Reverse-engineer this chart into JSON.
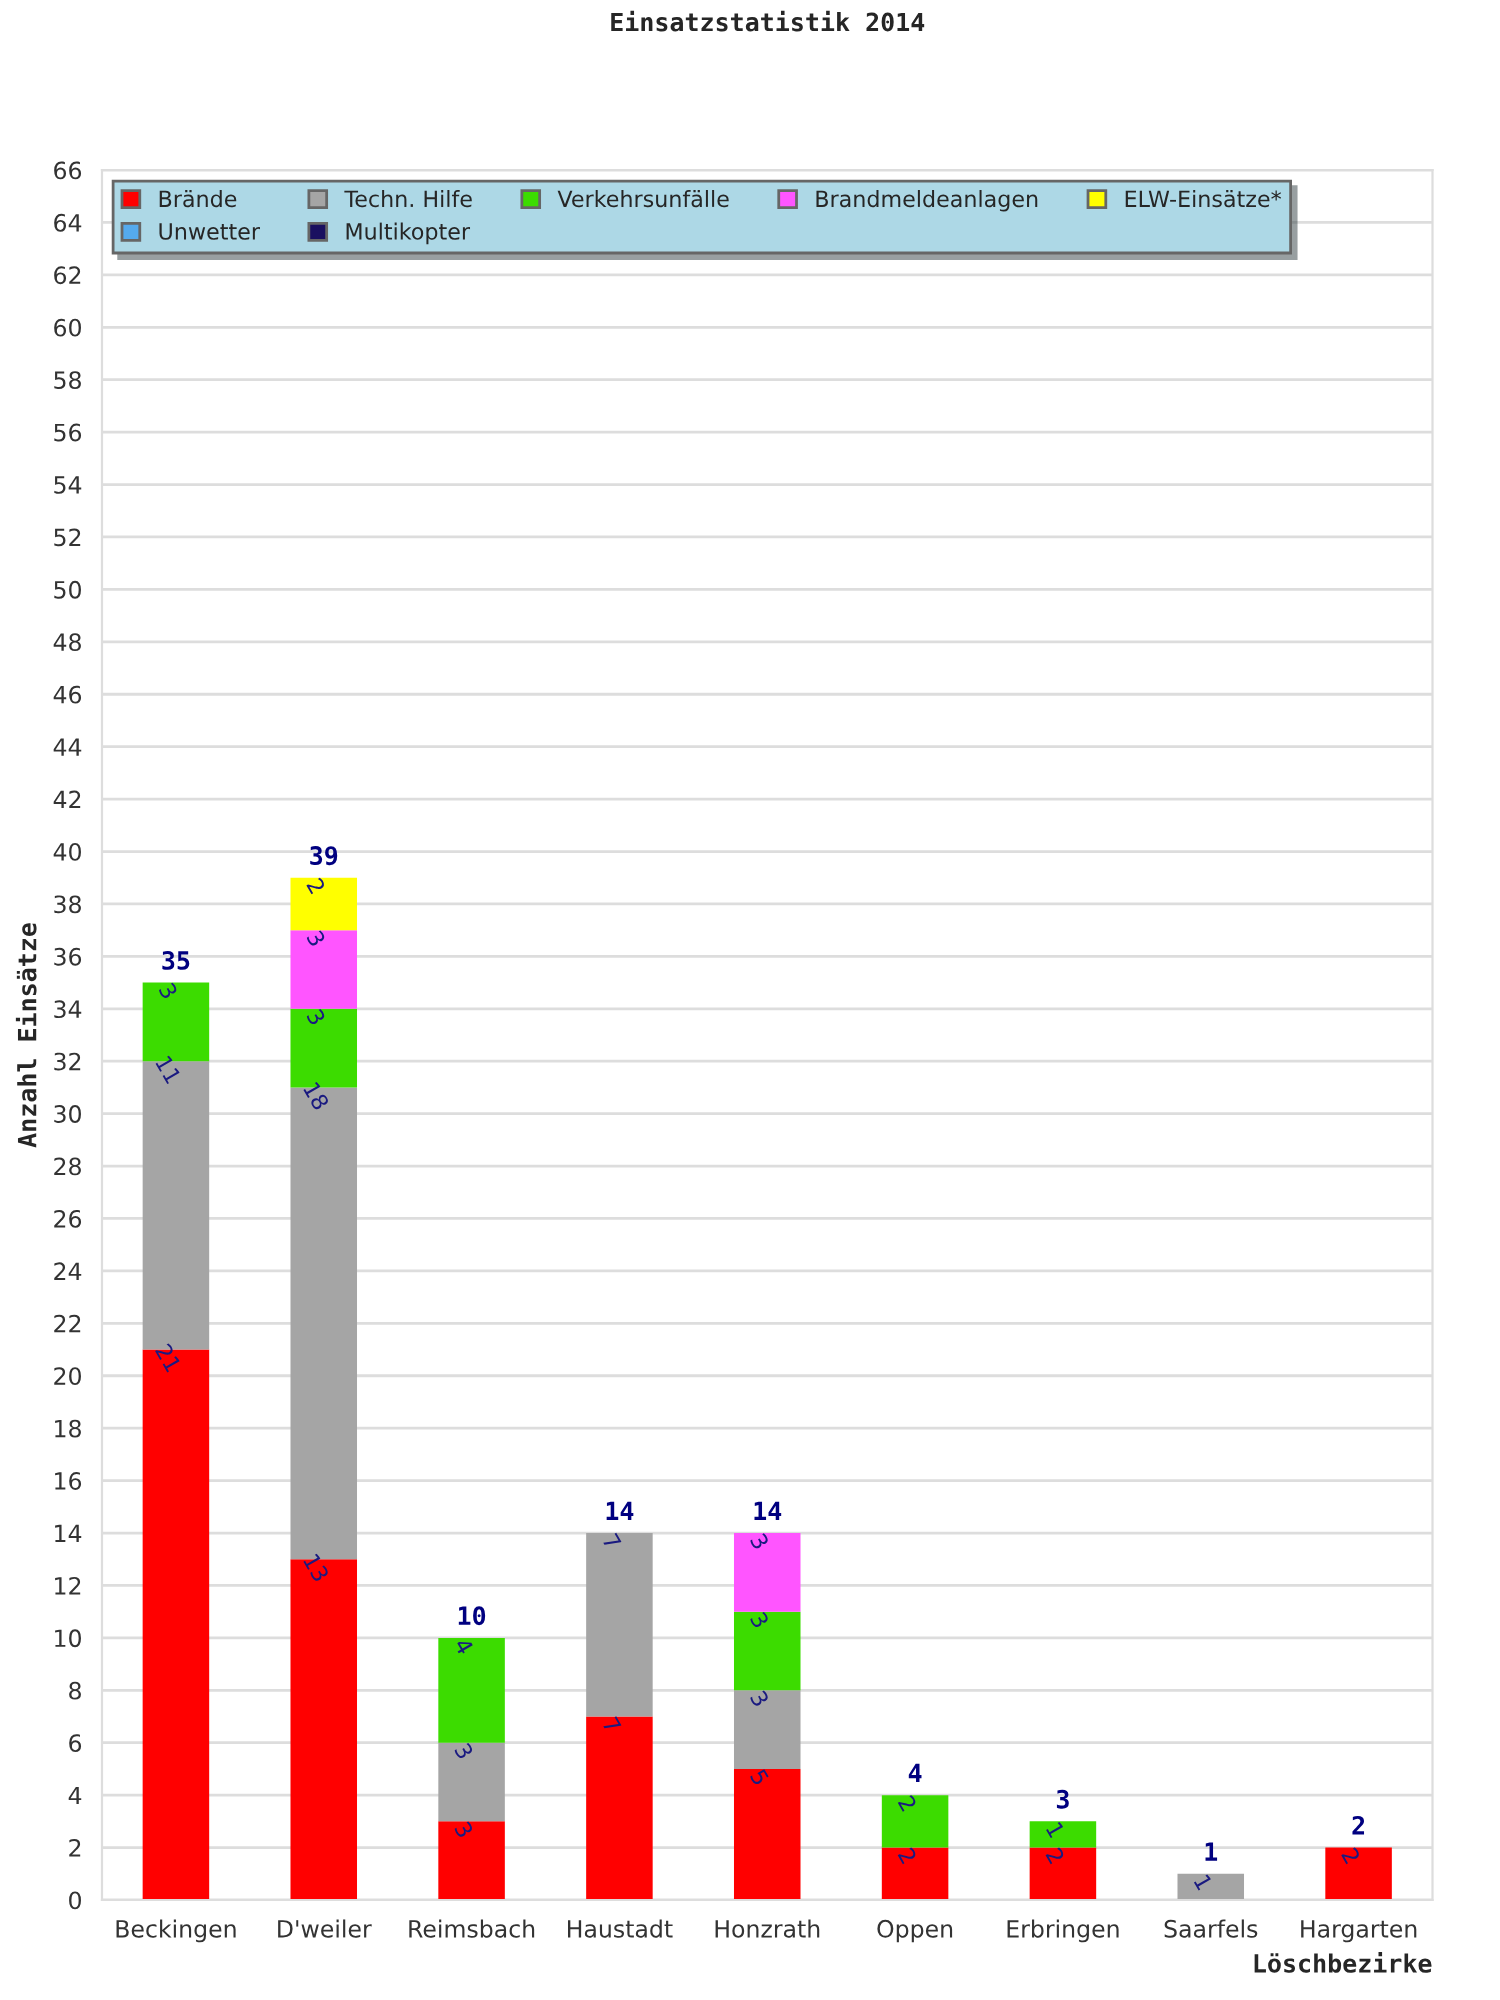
{
  "chart_data": {
    "type": "bar",
    "title": "Einsatzstatistik 2014",
    "xlabel": "Löschbezirke",
    "ylabel": "Anzahl Einsätze",
    "categories": [
      "Beckingen",
      "D'weiler",
      "Reimsbach",
      "Haustadt",
      "Honzrath",
      "Oppen",
      "Erbringen",
      "Saarfels",
      "Hargarten"
    ],
    "stacked": true,
    "ylim": [
      0,
      66
    ],
    "yticks": [
      0,
      2,
      4,
      6,
      8,
      10,
      12,
      14,
      16,
      18,
      20,
      22,
      24,
      26,
      28,
      30,
      32,
      34,
      36,
      38,
      40,
      42,
      44,
      46,
      48,
      50,
      52,
      54,
      56,
      58,
      60,
      62,
      64,
      66
    ],
    "grid": "y",
    "legend": "top left",
    "series": [
      {
        "name": "Brände",
        "color": "#ff0000",
        "values": [
          21,
          13,
          3,
          7,
          5,
          2,
          2,
          0,
          2
        ],
        "value_labels": [
          "21",
          "13",
          "3",
          "7",
          "5",
          "2",
          "2",
          null,
          "2"
        ]
      },
      {
        "name": "Techn. Hilfe",
        "color": "#a5a5a5",
        "values": [
          11,
          18,
          3,
          7,
          3,
          0,
          0,
          1,
          0
        ],
        "value_labels": [
          "11",
          "18",
          "3",
          "7",
          "3",
          null,
          null,
          "1",
          null
        ]
      },
      {
        "name": "Verkehrsunfälle",
        "color": "#3cdc00",
        "values": [
          3,
          3,
          4,
          0,
          3,
          2,
          1,
          0,
          0
        ],
        "value_labels": [
          "3",
          "3",
          "4",
          null,
          "3",
          "2",
          "1",
          null,
          null
        ]
      },
      {
        "name": "Brandmeldeanlagen",
        "color": "#ff55ff",
        "values": [
          0,
          3,
          0,
          0,
          3,
          0,
          0,
          0,
          0
        ],
        "value_labels": [
          null,
          "3",
          null,
          null,
          "3",
          null,
          null,
          null,
          null
        ]
      },
      {
        "name": "ELW-Einsätze*",
        "color": "#ffff00",
        "values": [
          0,
          2,
          0,
          0,
          0,
          0,
          0,
          0,
          0
        ],
        "value_labels": [
          null,
          "2",
          null,
          null,
          null,
          null,
          null,
          null,
          null
        ]
      },
      {
        "name": "Unwetter",
        "color": "#55aaee",
        "values": [
          0,
          0,
          0,
          0,
          0,
          0,
          0,
          0,
          0
        ]
      },
      {
        "name": "Multikopter",
        "color": "#1a1060",
        "values": [
          0,
          0,
          0,
          0,
          0,
          0,
          0,
          0,
          0
        ]
      }
    ],
    "totals": [
      "35",
      "39",
      "10",
      "14",
      "14",
      "4",
      "3",
      "1",
      "2"
    ]
  }
}
